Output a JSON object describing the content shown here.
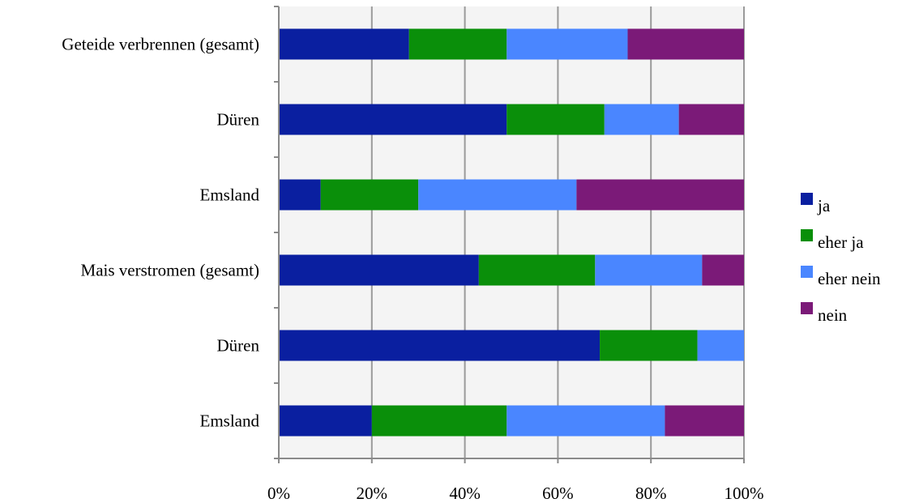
{
  "chart_data": {
    "type": "bar",
    "orientation": "horizontal",
    "stacked": "percent",
    "categories": [
      "Geteide verbrennen (gesamt)",
      "Düren",
      "Emsland",
      "Mais verstromen (gesamt)",
      "Düren",
      "Emsland"
    ],
    "series": [
      {
        "name": "ja",
        "color": "#0a1fa0",
        "values": [
          28,
          49,
          9,
          43,
          69,
          20
        ]
      },
      {
        "name": "eher ja",
        "color": "#0a8f0a",
        "values": [
          21,
          21,
          21,
          25,
          21,
          29
        ]
      },
      {
        "name": "eher nein",
        "color": "#4a86ff",
        "values": [
          26,
          16,
          34,
          23,
          10,
          34
        ]
      },
      {
        "name": "nein",
        "color": "#7b1a78",
        "values": [
          25,
          14,
          36,
          9,
          0,
          17
        ]
      }
    ],
    "xlim": [
      0,
      100
    ],
    "x_ticks": [
      "0%",
      "20%",
      "40%",
      "60%",
      "80%",
      "100%"
    ],
    "grid": true,
    "legend_position": "right",
    "plot_background": "#f4f4f4"
  }
}
